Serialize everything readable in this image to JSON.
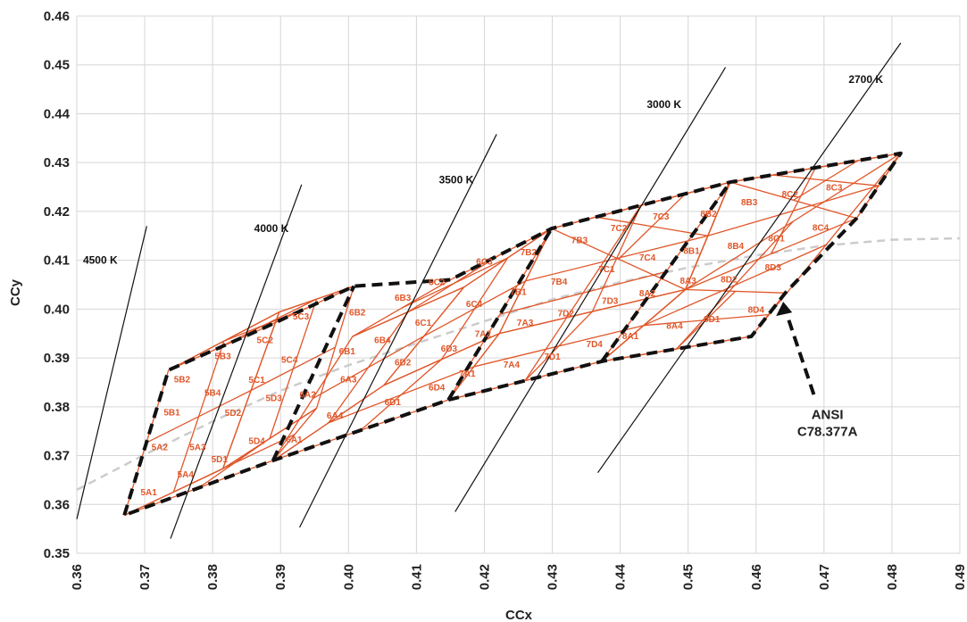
{
  "chart_data": {
    "type": "scatter",
    "title": "",
    "xlabel": "CCx",
    "ylabel": "CCy",
    "xlim": [
      0.36,
      0.49
    ],
    "ylim": [
      0.35,
      0.46
    ],
    "x_ticks": [
      "0.36",
      "0.37",
      "0.38",
      "0.39",
      "0.40",
      "0.41",
      "0.42",
      "0.43",
      "0.44",
      "0.45",
      "0.46",
      "0.47",
      "0.48",
      "0.49"
    ],
    "y_ticks": [
      "0.35",
      "0.36",
      "0.37",
      "0.38",
      "0.39",
      "0.40",
      "0.41",
      "0.42",
      "0.43",
      "0.44",
      "0.45",
      "0.46"
    ],
    "grid": true,
    "colors": {
      "bins": "#e0572a",
      "cct_lines": "#111111",
      "boundary": "#111111",
      "planckian": "#cccccc",
      "grid": "#d6d6d6"
    },
    "cct_lines": [
      {
        "name": "4500 K",
        "p1": [
          0.36,
          0.357
        ],
        "p2": [
          0.3703,
          0.417
        ],
        "label_pos": [
          0.366,
          0.4093
        ]
      },
      {
        "name": "4000 K",
        "p1": [
          0.3738,
          0.353
        ],
        "p2": [
          0.3931,
          0.4255
        ],
        "label_pos": [
          0.3912,
          0.4158
        ]
      },
      {
        "name": "3500 K",
        "p1": [
          0.3928,
          0.3553
        ],
        "p2": [
          0.4218,
          0.4358
        ],
        "label_pos": [
          0.4184,
          0.4257
        ]
      },
      {
        "name": "3000 K",
        "p1": [
          0.4157,
          0.3585
        ],
        "p2": [
          0.4555,
          0.4495
        ],
        "label_pos": [
          0.449,
          0.4412
        ]
      },
      {
        "name": "2700 K",
        "p1": [
          0.4367,
          0.3665
        ],
        "p2": [
          0.4813,
          0.4545
        ],
        "label_pos": [
          0.4787,
          0.4463
        ]
      }
    ],
    "planckian_locus": [
      [
        0.36,
        0.363
      ],
      [
        0.37,
        0.3702
      ],
      [
        0.38,
        0.377
      ],
      [
        0.39,
        0.3833
      ],
      [
        0.4,
        0.3885
      ],
      [
        0.41,
        0.393
      ],
      [
        0.42,
        0.3975
      ],
      [
        0.43,
        0.402
      ],
      [
        0.44,
        0.4055
      ],
      [
        0.45,
        0.4085
      ],
      [
        0.46,
        0.411
      ],
      [
        0.47,
        0.413
      ],
      [
        0.48,
        0.4142
      ],
      [
        0.49,
        0.4145
      ]
    ],
    "quadrangles": [
      {
        "name": "5A",
        "corners": [
          [
            0.367,
            0.3578
          ],
          [
            0.3735,
            0.3875
          ],
          [
            0.3898,
            0.3994
          ],
          [
            0.3815,
            0.3673
          ]
        ]
      },
      {
        "name": "5B",
        "corners": [
          [
            0.3735,
            0.3875
          ],
          [
            0.387,
            0.3958
          ],
          [
            0.4008,
            0.4047
          ],
          [
            0.3898,
            0.3994
          ]
        ]
      },
      {
        "name": "5C",
        "corners": [
          [
            0.3815,
            0.3673
          ],
          [
            0.3898,
            0.3994
          ],
          [
            0.4008,
            0.4047
          ],
          [
            0.3953,
            0.3797
          ]
        ]
      },
      {
        "name": "5D",
        "corners": [
          [
            0.367,
            0.3578
          ],
          [
            0.3815,
            0.3673
          ],
          [
            0.3953,
            0.3797
          ],
          [
            0.3889,
            0.369
          ]
        ]
      },
      {
        "name": "6A",
        "corners": [
          [
            0.3889,
            0.369
          ],
          [
            0.4006,
            0.3944
          ],
          [
            0.417,
            0.4045
          ],
          [
            0.4052,
            0.3844
          ]
        ]
      },
      {
        "name": "6B",
        "corners": [
          [
            0.4006,
            0.3944
          ],
          [
            0.415,
            0.406
          ],
          [
            0.4299,
            0.4165
          ],
          [
            0.417,
            0.4045
          ]
        ]
      },
      {
        "name": "6C",
        "corners": [
          [
            0.4052,
            0.3844
          ],
          [
            0.417,
            0.4045
          ],
          [
            0.4299,
            0.4165
          ],
          [
            0.4222,
            0.395
          ]
        ]
      },
      {
        "name": "6D",
        "corners": [
          [
            0.3889,
            0.369
          ],
          [
            0.4052,
            0.3844
          ],
          [
            0.4222,
            0.395
          ],
          [
            0.4147,
            0.3814
          ]
        ]
      },
      {
        "name": "7A",
        "corners": [
          [
            0.4147,
            0.3814
          ],
          [
            0.4299,
            0.4165
          ],
          [
            0.4562,
            0.426
          ],
          [
            0.4373,
            0.3893
          ]
        ]
      },
      {
        "name": "7B",
        "corners": [
          [
            0.4299,
            0.4165
          ],
          [
            0.443,
            0.4212
          ],
          [
            0.4562,
            0.426
          ],
          [
            0.4496,
            0.404
          ]
        ]
      },
      {
        "name": "7C",
        "corners": [
          [
            0.4222,
            0.395
          ],
          [
            0.4299,
            0.4165
          ],
          [
            0.4562,
            0.426
          ],
          [
            0.4496,
            0.404
          ]
        ]
      },
      {
        "name": "7D",
        "corners": [
          [
            0.4147,
            0.3814
          ],
          [
            0.4222,
            0.395
          ],
          [
            0.4496,
            0.404
          ],
          [
            0.4373,
            0.3893
          ]
        ]
      },
      {
        "name": "8A",
        "corners": [
          [
            0.4373,
            0.3893
          ],
          [
            0.4496,
            0.404
          ],
          [
            0.4813,
            0.4319
          ],
          [
            0.4593,
            0.3944
          ]
        ]
      },
      {
        "name": "8B",
        "corners": [
          [
            0.4562,
            0.426
          ],
          [
            0.4687,
            0.4289
          ],
          [
            0.4813,
            0.4319
          ],
          [
            0.4748,
            0.4186
          ]
        ]
      },
      {
        "name": "8C",
        "corners": [
          [
            0.4496,
            0.404
          ],
          [
            0.4562,
            0.426
          ],
          [
            0.4813,
            0.4319
          ],
          [
            0.4748,
            0.4186
          ]
        ]
      },
      {
        "name": "8D",
        "corners": [
          [
            0.4373,
            0.3893
          ],
          [
            0.4496,
            0.404
          ],
          [
            0.4643,
            0.4033
          ],
          [
            0.4593,
            0.3944
          ]
        ]
      }
    ],
    "bin_labels": [
      {
        "text": "5A1",
        "x": 0.3706,
        "y": 0.3626
      },
      {
        "text": "5A2",
        "x": 0.3722,
        "y": 0.3718
      },
      {
        "text": "5A3",
        "x": 0.3778,
        "y": 0.3718
      },
      {
        "text": "5A4",
        "x": 0.376,
        "y": 0.3663
      },
      {
        "text": "5B1",
        "x": 0.374,
        "y": 0.379
      },
      {
        "text": "5B2",
        "x": 0.3755,
        "y": 0.3857
      },
      {
        "text": "5B3",
        "x": 0.3815,
        "y": 0.3905
      },
      {
        "text": "5B4",
        "x": 0.38,
        "y": 0.383
      },
      {
        "text": "5C1",
        "x": 0.3865,
        "y": 0.3856
      },
      {
        "text": "5C2",
        "x": 0.3877,
        "y": 0.3938
      },
      {
        "text": "5C3",
        "x": 0.393,
        "y": 0.3986
      },
      {
        "text": "5C4",
        "x": 0.3913,
        "y": 0.3897
      },
      {
        "text": "5D1",
        "x": 0.381,
        "y": 0.3694
      },
      {
        "text": "5D2",
        "x": 0.383,
        "y": 0.3789
      },
      {
        "text": "5D3",
        "x": 0.389,
        "y": 0.3819
      },
      {
        "text": "5D4",
        "x": 0.3865,
        "y": 0.3731
      },
      {
        "text": "6A1",
        "x": 0.392,
        "y": 0.3734
      },
      {
        "text": "6A2",
        "x": 0.394,
        "y": 0.3826
      },
      {
        "text": "6A3",
        "x": 0.4,
        "y": 0.3857
      },
      {
        "text": "6A4",
        "x": 0.398,
        "y": 0.3783
      },
      {
        "text": "6B1",
        "x": 0.3998,
        "y": 0.3915
      },
      {
        "text": "6B2",
        "x": 0.4013,
        "y": 0.3994
      },
      {
        "text": "6B3",
        "x": 0.408,
        "y": 0.4024
      },
      {
        "text": "6B4",
        "x": 0.405,
        "y": 0.3938
      },
      {
        "text": "6C1",
        "x": 0.411,
        "y": 0.3973
      },
      {
        "text": "6C2",
        "x": 0.413,
        "y": 0.4056
      },
      {
        "text": "6C3",
        "x": 0.42,
        "y": 0.4098
      },
      {
        "text": "6C4",
        "x": 0.4185,
        "y": 0.4012
      },
      {
        "text": "6D1",
        "x": 0.4065,
        "y": 0.3811
      },
      {
        "text": "6D2",
        "x": 0.408,
        "y": 0.3892
      },
      {
        "text": "6D3",
        "x": 0.4148,
        "y": 0.392
      },
      {
        "text": "6D4",
        "x": 0.413,
        "y": 0.3841
      },
      {
        "text": "7A1",
        "x": 0.4175,
        "y": 0.3869
      },
      {
        "text": "7A2",
        "x": 0.4198,
        "y": 0.395
      },
      {
        "text": "7A3",
        "x": 0.426,
        "y": 0.3973
      },
      {
        "text": "7A4",
        "x": 0.424,
        "y": 0.3887
      },
      {
        "text": "7B1",
        "x": 0.425,
        "y": 0.4036
      },
      {
        "text": "7B2",
        "x": 0.4265,
        "y": 0.4118
      },
      {
        "text": "7B3",
        "x": 0.434,
        "y": 0.4142
      },
      {
        "text": "7B4",
        "x": 0.431,
        "y": 0.4057
      },
      {
        "text": "7C1",
        "x": 0.438,
        "y": 0.4083
      },
      {
        "text": "7C2",
        "x": 0.4398,
        "y": 0.4167
      },
      {
        "text": "7C3",
        "x": 0.446,
        "y": 0.4191
      },
      {
        "text": "7C4",
        "x": 0.444,
        "y": 0.4107
      },
      {
        "text": "7D1",
        "x": 0.43,
        "y": 0.3904
      },
      {
        "text": "7D2",
        "x": 0.432,
        "y": 0.3992
      },
      {
        "text": "7D3",
        "x": 0.4385,
        "y": 0.4018
      },
      {
        "text": "7D4",
        "x": 0.4362,
        "y": 0.3929
      },
      {
        "text": "8A1",
        "x": 0.4415,
        "y": 0.3946
      },
      {
        "text": "8A2",
        "x": 0.444,
        "y": 0.4034
      },
      {
        "text": "8A3",
        "x": 0.45,
        "y": 0.4059
      },
      {
        "text": "8A4",
        "x": 0.448,
        "y": 0.3967
      },
      {
        "text": "8B1",
        "x": 0.4505,
        "y": 0.412
      },
      {
        "text": "8B2",
        "x": 0.453,
        "y": 0.4196
      },
      {
        "text": "8B3",
        "x": 0.459,
        "y": 0.422
      },
      {
        "text": "8B4",
        "x": 0.457,
        "y": 0.413
      },
      {
        "text": "8C1",
        "x": 0.463,
        "y": 0.4146
      },
      {
        "text": "8C2",
        "x": 0.465,
        "y": 0.4236
      },
      {
        "text": "8C3",
        "x": 0.4715,
        "y": 0.425
      },
      {
        "text": "8C4",
        "x": 0.4695,
        "y": 0.4168
      },
      {
        "text": "8D1",
        "x": 0.4535,
        "y": 0.3981
      },
      {
        "text": "8D2",
        "x": 0.456,
        "y": 0.4062
      },
      {
        "text": "8D3",
        "x": 0.4625,
        "y": 0.4087
      },
      {
        "text": "8D4",
        "x": 0.46,
        "y": 0.4
      }
    ],
    "annotation": {
      "lines": [
        "ANSI",
        "C78.377A"
      ],
      "text_pos": [
        0.4705,
        0.3775
      ],
      "arrow_from": [
        0.4685,
        0.3825
      ],
      "arrow_to": [
        0.464,
        0.4015
      ]
    }
  }
}
